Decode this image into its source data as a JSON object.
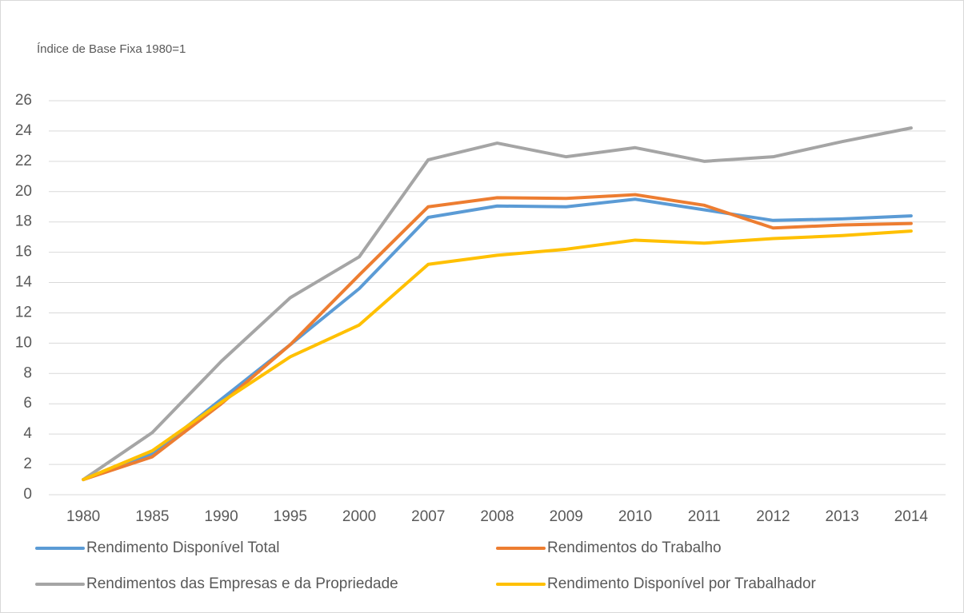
{
  "chart_data": {
    "type": "line",
    "y_label": "Índice de Base Fixa 1980=1",
    "categories": [
      "1980",
      "1985",
      "1990",
      "1995",
      "2000",
      "2007",
      "2008",
      "2009",
      "2010",
      "2011",
      "2012",
      "2013",
      "2014"
    ],
    "series": [
      {
        "name": "Rendimento Disponível Total",
        "color": "#5b9bd5",
        "values": [
          1.0,
          2.7,
          6.3,
          9.9,
          13.6,
          18.3,
          19.05,
          19.0,
          19.5,
          18.8,
          18.1,
          18.2,
          18.4
        ]
      },
      {
        "name": "Rendimentos do Trabalho",
        "color": "#ed7d31",
        "values": [
          1.0,
          2.5,
          6.0,
          9.9,
          14.5,
          19.0,
          19.6,
          19.55,
          19.8,
          19.1,
          17.6,
          17.8,
          17.9
        ]
      },
      {
        "name": "Rendimentos das Empresas e da Propriedade",
        "color": "#a5a5a5",
        "values": [
          1.0,
          4.1,
          8.8,
          13.0,
          15.7,
          22.1,
          23.2,
          22.3,
          22.9,
          22.0,
          22.3,
          23.3,
          24.2
        ]
      },
      {
        "name": "Rendimento Disponível por Trabalhador",
        "color": "#ffc000",
        "values": [
          1.0,
          2.9,
          6.1,
          9.1,
          11.2,
          15.2,
          15.8,
          16.2,
          16.8,
          16.6,
          16.9,
          17.1,
          17.4
        ]
      }
    ],
    "ylim": [
      0,
      26
    ],
    "yticks": [
      0,
      2,
      4,
      6,
      8,
      10,
      12,
      14,
      16,
      18,
      20,
      22,
      24,
      26
    ],
    "grid": true,
    "legend": "bottom"
  }
}
